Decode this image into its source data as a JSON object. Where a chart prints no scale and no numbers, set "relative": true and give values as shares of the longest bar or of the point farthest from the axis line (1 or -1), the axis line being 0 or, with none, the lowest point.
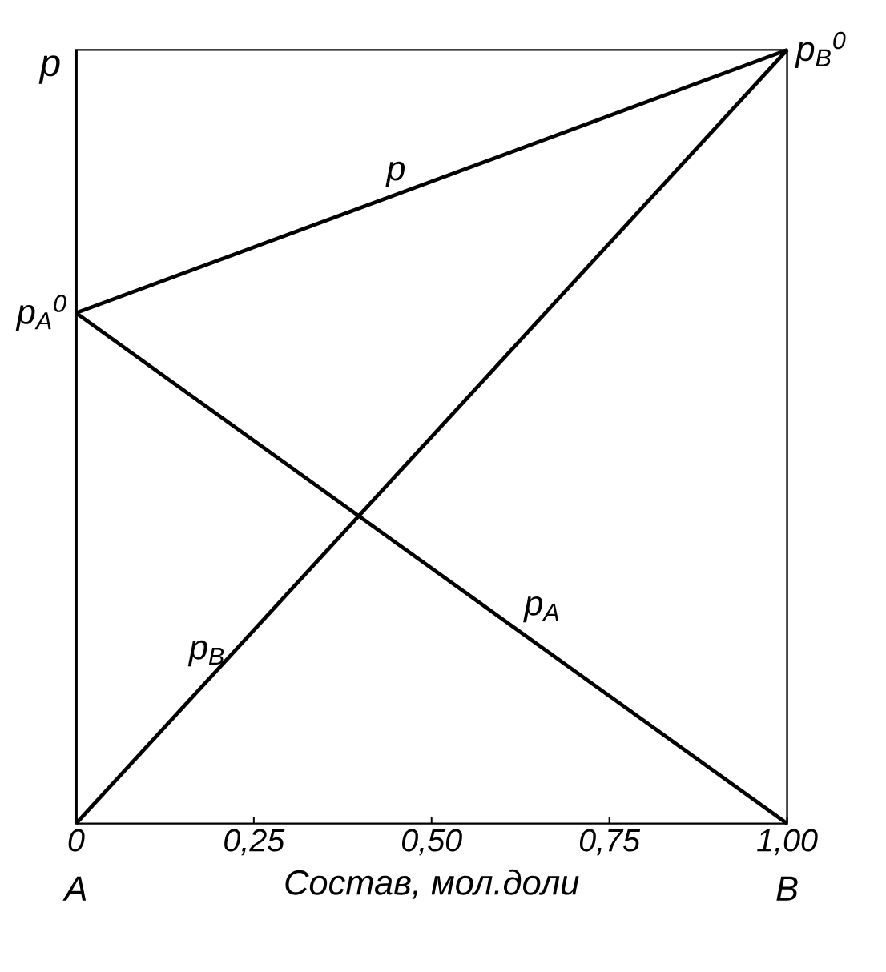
{
  "chart_data": {
    "type": "line",
    "relative": true,
    "xlabel": "Состав, мол.доли",
    "ylabel": "p",
    "x": [
      0,
      1
    ],
    "xlim": [
      0,
      1
    ],
    "xticks": [
      0,
      {
        "value": 0.25,
        "label": "0,25"
      },
      {
        "value": 0.5,
        "label": "0,50"
      },
      {
        "value": 0.75,
        "label": "0,75"
      },
      {
        "value": 1,
        "label": "1,00"
      }
    ],
    "series": [
      {
        "name": "p",
        "color": "#000000",
        "values": [
          0.66,
          1
        ]
      },
      {
        "name": "p$_{A}$",
        "color": "#000000",
        "values": [
          0.66,
          0
        ]
      },
      {
        "name": "p$_{B}$",
        "color": "#000000",
        "values": [
          0,
          1
        ]
      }
    ],
    "annotations": [
      "p$_{A}$$^{0}$",
      "p$_{B}$$^{0}$",
      "A",
      "B"
    ],
    "grid": false
  }
}
